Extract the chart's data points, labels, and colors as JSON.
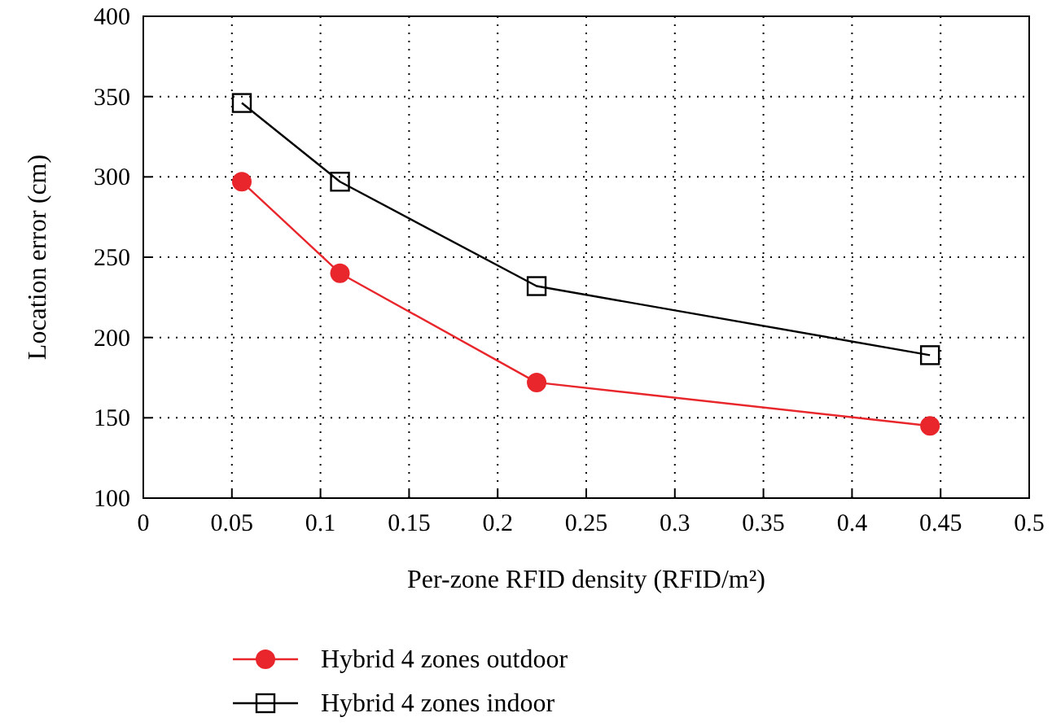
{
  "chart_data": {
    "type": "line",
    "xlabel": "Per-zone RFID density (RFID/m²)",
    "ylabel": "Location error (cm)",
    "x": [
      0.0556,
      0.111,
      0.222,
      0.444
    ],
    "series": [
      {
        "name": "Hybrid 4 zones outdoor",
        "color": "#e8262b",
        "marker": "circle",
        "values": [
          297,
          240,
          172,
          145
        ]
      },
      {
        "name": "Hybrid 4 zones indoor",
        "color": "#000000",
        "marker": "square",
        "values": [
          346,
          297,
          232,
          189
        ]
      }
    ],
    "xlim": [
      0,
      0.5
    ],
    "xticks": [
      0,
      0.05,
      0.1,
      0.15,
      0.2,
      0.25,
      0.3,
      0.35,
      0.4,
      0.45,
      0.5
    ],
    "ylim": [
      100,
      400
    ],
    "yticks": [
      100,
      150,
      200,
      250,
      300,
      350,
      400
    ],
    "grid": true,
    "legend": "bottom",
    "line_style": "solid"
  }
}
